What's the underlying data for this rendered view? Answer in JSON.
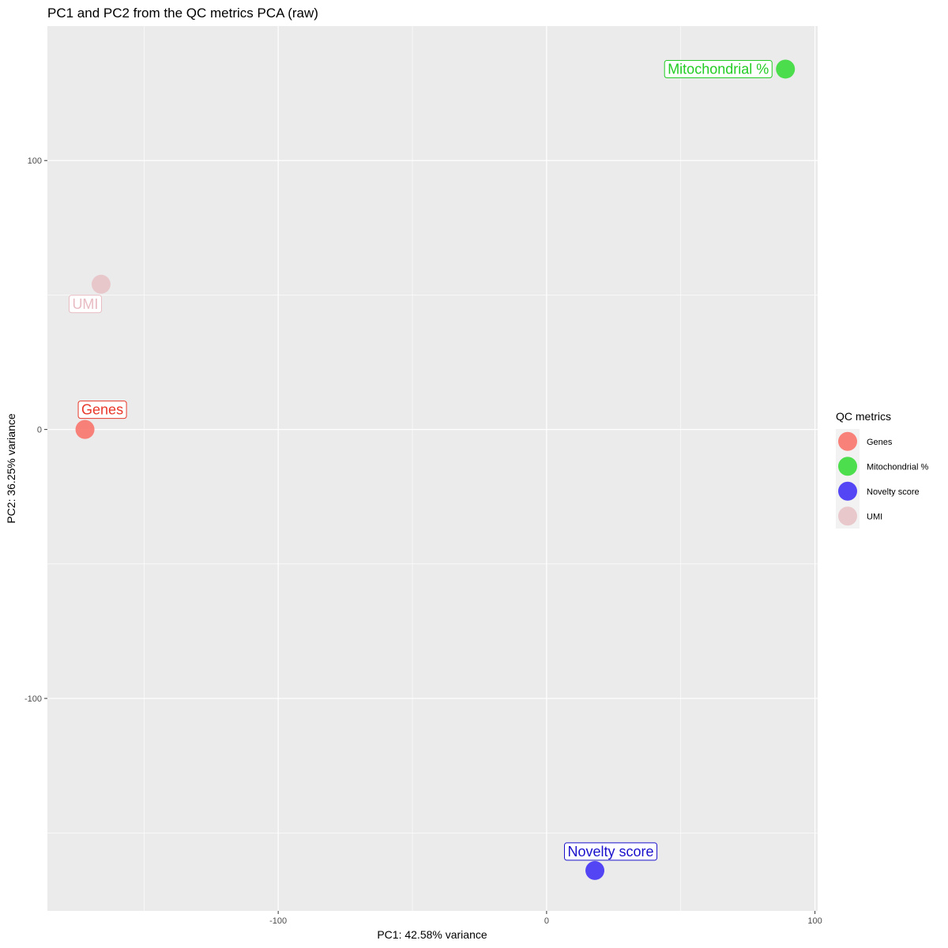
{
  "chart_data": {
    "type": "scatter",
    "title": "PC1 and PC2 from the QC metrics PCA (raw)",
    "xlabel": "PC1: 42.58% variance",
    "ylabel": "PC2: 36.25% variance",
    "xlim": [
      -186,
      101
    ],
    "ylim": [
      -179,
      150
    ],
    "x_ticks": [
      -100,
      0,
      100
    ],
    "y_ticks": [
      -100,
      0,
      100
    ],
    "grid": true,
    "legend": {
      "title": "QC metrics",
      "placement": "right"
    },
    "points": [
      {
        "name": "Genes",
        "x": -172,
        "y": 0,
        "color": "#F8766D",
        "label_color": "#E8382A"
      },
      {
        "name": "Mitochondrial %",
        "x": 89,
        "y": 134,
        "color": "#3BDB3B",
        "label_color": "#22CC22"
      },
      {
        "name": "Novelty score",
        "x": 18,
        "y": -164,
        "color": "#4433F5",
        "label_color": "#1A10CC"
      },
      {
        "name": "UMI",
        "x": -166,
        "y": 54,
        "color": "#E8C3C8",
        "label_color": "#E8BBC2"
      }
    ]
  }
}
